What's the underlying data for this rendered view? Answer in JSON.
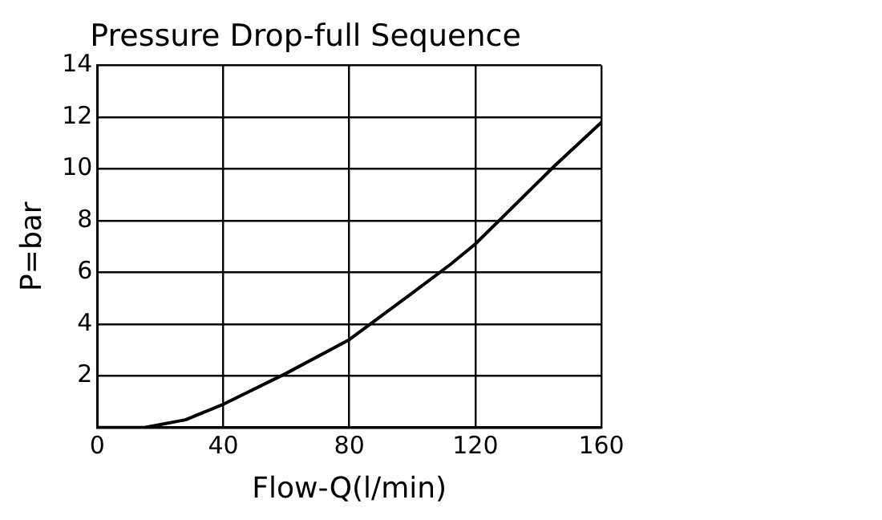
{
  "chart_data": {
    "type": "line",
    "title": "Pressure Drop-full Sequence",
    "xlabel": "Flow-Q(l/min)",
    "ylabel": "P=bar",
    "x": [
      0,
      15,
      28,
      40,
      60,
      80,
      90,
      100,
      112,
      120,
      130,
      145,
      160
    ],
    "series": [
      {
        "color": "#000000",
        "values": [
          0,
          0,
          0.3,
          0.9,
          2.1,
          3.4,
          4.3,
          5.2,
          6.3,
          7.1,
          8.3,
          10.1,
          11.8
        ]
      }
    ],
    "xlim": [
      0,
      160
    ],
    "xticks": [
      0,
      40,
      80,
      120,
      160
    ],
    "ylim": [
      0,
      14
    ],
    "yticks": [
      {
        "value": 0,
        "label": null
      },
      2,
      4,
      6,
      8,
      10,
      12,
      14
    ],
    "grid": true,
    "legend": false,
    "marker": "none",
    "line_style": "solid"
  }
}
